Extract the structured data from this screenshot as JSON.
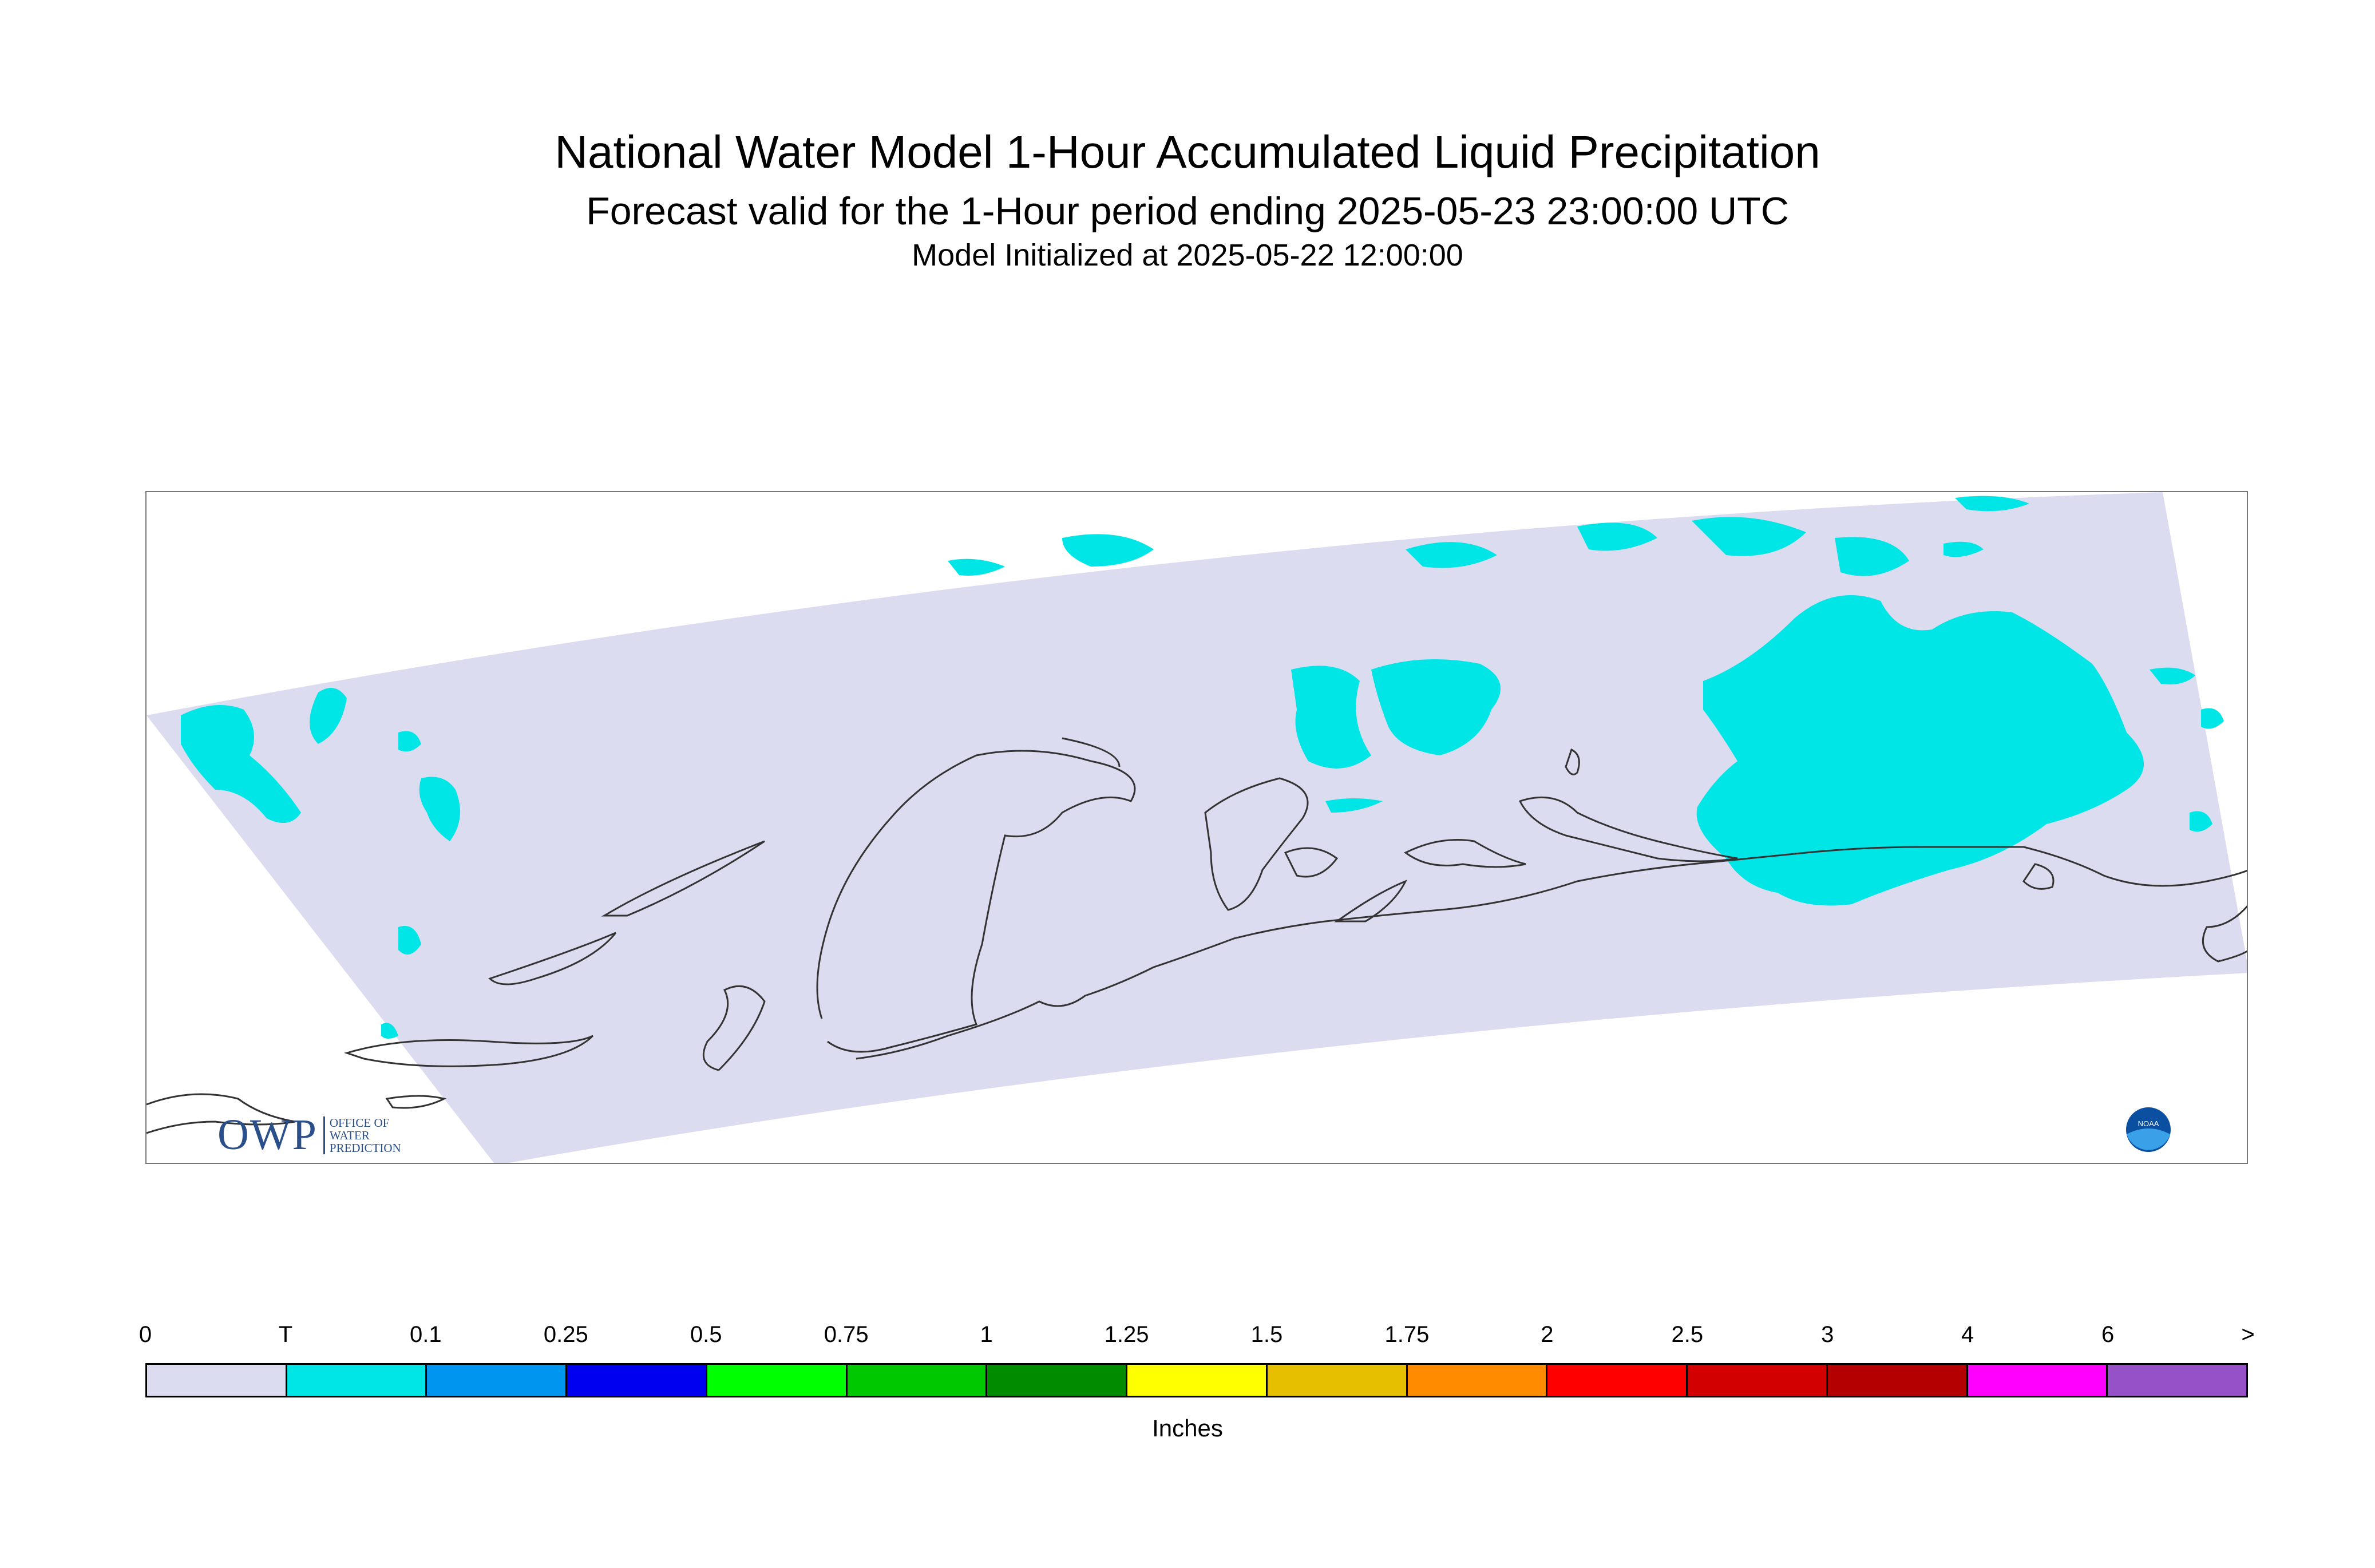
{
  "title": "National Water Model 1-Hour Accumulated Liquid Precipitation",
  "subtitle": "Forecast valid for the 1-Hour period ending 2025-05-23 23:00:00 UTC",
  "init_line": "Model Initialized at 2025-05-22 12:00:00",
  "logos": {
    "owp_mark": "OWP",
    "owp_lines": [
      "OFFICE OF",
      "WATER",
      "PREDICTION"
    ],
    "noaa_text": "NOAA"
  },
  "legend": {
    "units": "Inches",
    "ticks": [
      "0",
      "T",
      "0.1",
      "0.25",
      "0.5",
      "0.75",
      "1",
      "1.25",
      "1.5",
      "1.75",
      "2",
      "2.5",
      "3",
      "4",
      "6",
      ">"
    ],
    "colors": [
      "#dcdcf0",
      "#00e6e6",
      "#0096f0",
      "#0000f0",
      "#00ff00",
      "#00c800",
      "#008c00",
      "#ffff00",
      "#e6c000",
      "#ff8c00",
      "#ff0000",
      "#d20000",
      "#b40000",
      "#ff00ff",
      "#9650c8"
    ]
  },
  "map": {
    "domain_color": "#dcdcf0",
    "trace_color": "#00e6e6",
    "coast_color": "#333333"
  }
}
